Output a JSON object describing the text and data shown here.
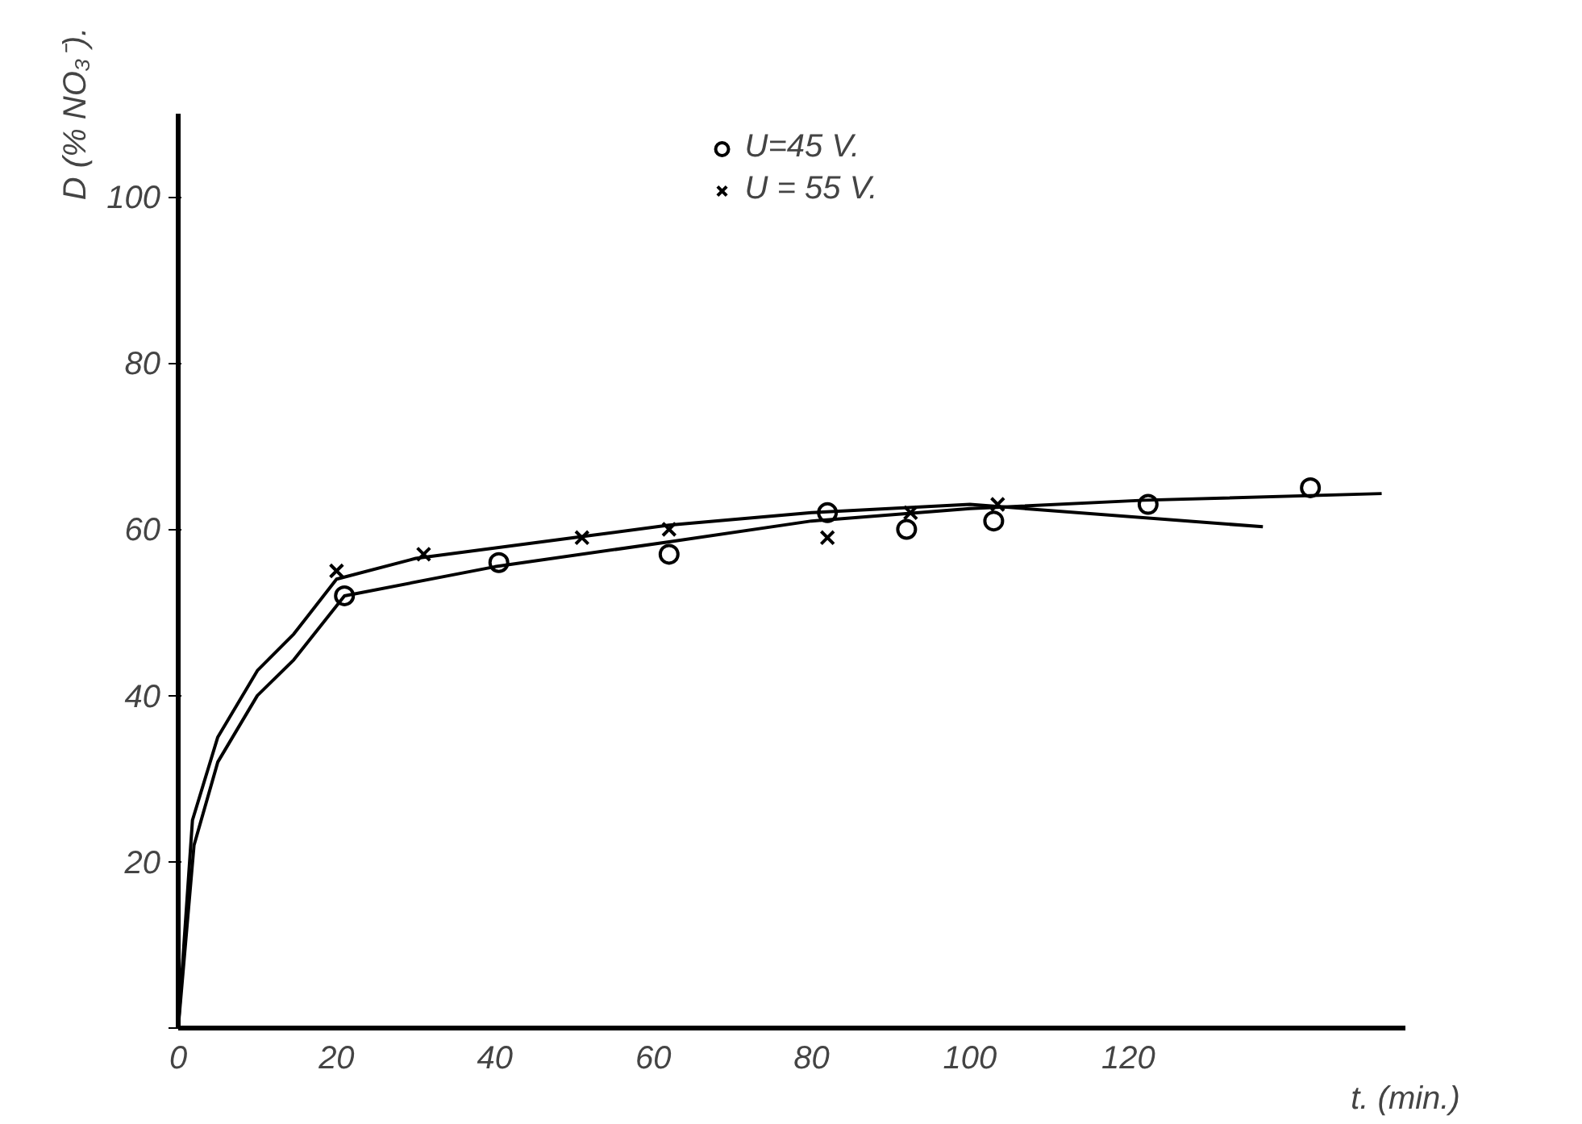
{
  "chart_data": {
    "type": "scatter",
    "xlabel": "t. (min.)",
    "ylabel": "D (% NO₃⁻).",
    "xlim": [
      0,
      155
    ],
    "ylim": [
      0,
      110
    ],
    "xticks": [
      0,
      20,
      40,
      60,
      80,
      100,
      120
    ],
    "yticks": [
      {
        "value": 0,
        "label": null
      },
      20,
      40,
      60,
      80,
      100
    ],
    "grid": false,
    "legend": "top",
    "series": [
      {
        "name": "U=45 V.",
        "marker": "circle",
        "color": "#000000",
        "x": [
          21,
          40.5,
          62,
          82,
          92,
          103,
          122.5,
          143
        ],
        "values": [
          52,
          56,
          57,
          62,
          60,
          61,
          63,
          65
        ]
      },
      {
        "name": "U = 55 V.",
        "marker": "cross",
        "color": "#000000",
        "x": [
          20,
          31,
          51,
          62,
          82,
          92.5,
          103.5
        ],
        "values": [
          55,
          57,
          59,
          60,
          59,
          62,
          63
        ]
      },
      {
        "type": "line",
        "marker": "none",
        "color": "#000000",
        "x": [
          0,
          2,
          5,
          10,
          14.6,
          21,
          40,
          62,
          80,
          100,
          122,
          152
        ],
        "values": [
          0,
          22,
          32,
          40,
          44.3,
          52,
          55.5,
          58.5,
          61,
          62.5,
          63.5,
          64.3
        ]
      },
      {
        "type": "line",
        "marker": "none",
        "color": "#000000",
        "x": [
          0,
          1.8,
          5,
          10,
          14.6,
          20,
          30,
          50,
          62,
          80,
          100,
          137
        ],
        "values": [
          0,
          25,
          35,
          43,
          47.4,
          54,
          56.5,
          59,
          60.5,
          62,
          63,
          60.3
        ]
      }
    ]
  }
}
